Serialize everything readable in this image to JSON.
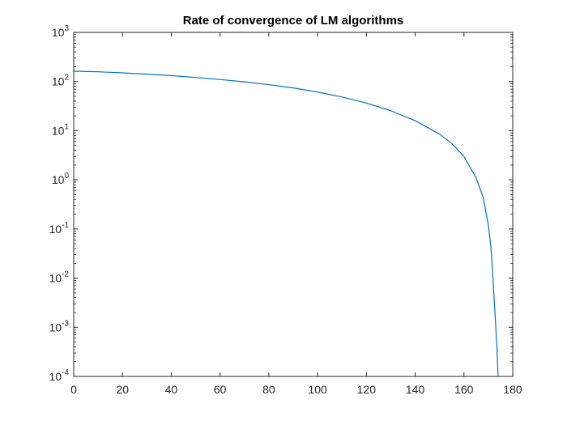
{
  "chart_data": {
    "type": "line",
    "title": "Rate of convergence of LM algorithms",
    "xlabel": "",
    "ylabel": "",
    "xlim": [
      0,
      180
    ],
    "ylim": [
      0.0001,
      1000
    ],
    "yscale": "log",
    "grid": false,
    "box": true,
    "xticks": [
      0,
      20,
      40,
      60,
      80,
      100,
      120,
      140,
      160,
      180
    ],
    "xtick_labels": [
      "0",
      "20",
      "40",
      "60",
      "80",
      "100",
      "120",
      "140",
      "160",
      "180"
    ],
    "yticks": [
      {
        "value": 0.0001,
        "base": "10",
        "exp": "-4"
      },
      {
        "value": 0.001,
        "base": "10",
        "exp": "-3"
      },
      {
        "value": 0.01,
        "base": "10",
        "exp": "-2"
      },
      {
        "value": 0.1,
        "base": "10",
        "exp": "-1"
      },
      {
        "value": 1,
        "base": "10",
        "exp": "0"
      },
      {
        "value": 10,
        "base": "10",
        "exp": "1"
      },
      {
        "value": 100,
        "base": "10",
        "exp": "2"
      },
      {
        "value": 1000,
        "base": "10",
        "exp": "3"
      }
    ],
    "series": [
      {
        "color": "#0072bd",
        "x": [
          0,
          10,
          20,
          30,
          40,
          50,
          60,
          70,
          80,
          90,
          100,
          110,
          120,
          130,
          140,
          150,
          155,
          160,
          165,
          168,
          170,
          171,
          171.5,
          172,
          172.5,
          173,
          173.5,
          174
        ],
        "y": [
          162,
          158,
          150,
          141,
          132,
          121,
          110,
          98.5,
          86.5,
          74,
          61,
          48.5,
          36.5,
          25.5,
          16,
          8.5,
          5.5,
          3.0,
          1.1,
          0.42,
          0.12,
          0.045,
          0.02,
          0.008,
          0.003,
          0.0011,
          0.0004,
          0.0001
        ]
      }
    ]
  }
}
